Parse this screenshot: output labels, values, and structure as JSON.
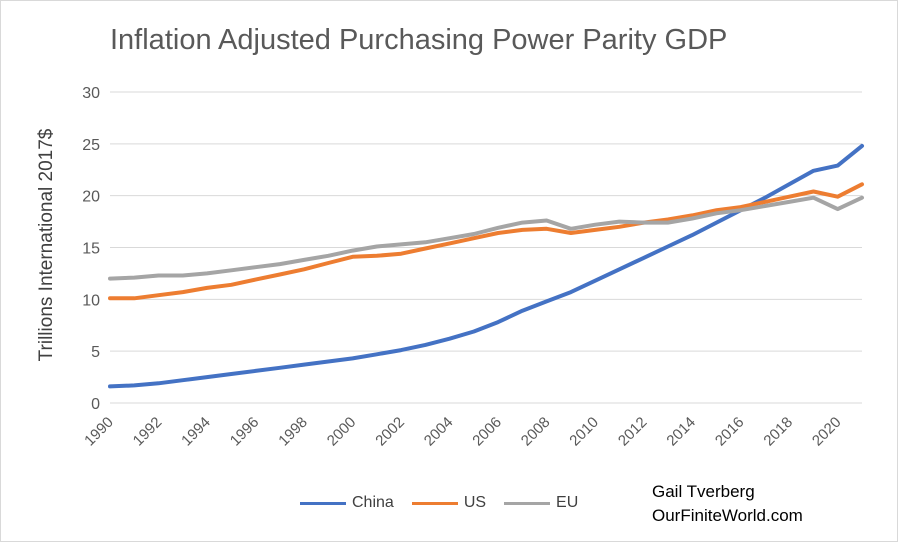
{
  "chart_data": {
    "type": "line",
    "title": "Inflation Adjusted Purchasing Power Parity GDP",
    "ylabel": "Trillions International 2017$",
    "xlabel": "",
    "ylim": [
      0,
      30
    ],
    "yticks": [
      "0",
      "5",
      "10",
      "15",
      "20",
      "25",
      "30"
    ],
    "xticks": [
      "1990",
      "1992",
      "1994",
      "1996",
      "1998",
      "2000",
      "2002",
      "2004",
      "2006",
      "2008",
      "2010",
      "2012",
      "2014",
      "2016",
      "2018",
      "2020"
    ],
    "x": [
      1990,
      1991,
      1992,
      1993,
      1994,
      1995,
      1996,
      1997,
      1998,
      1999,
      2000,
      2001,
      2002,
      2003,
      2004,
      2005,
      2006,
      2007,
      2008,
      2009,
      2010,
      2011,
      2012,
      2013,
      2014,
      2015,
      2016,
      2017,
      2018,
      2019,
      2020,
      2021
    ],
    "grid": true,
    "legend_position": "bottom",
    "series": [
      {
        "name": "China",
        "color": "#4472C4",
        "values": [
          1.6,
          1.7,
          1.9,
          2.2,
          2.5,
          2.8,
          3.1,
          3.4,
          3.7,
          4.0,
          4.3,
          4.7,
          5.1,
          5.6,
          6.2,
          6.9,
          7.8,
          8.9,
          9.8,
          10.7,
          11.8,
          12.9,
          14.0,
          15.1,
          16.2,
          17.4,
          18.6,
          19.8,
          21.1,
          22.4,
          22.9,
          24.8
        ]
      },
      {
        "name": "US",
        "color": "#ED7D31",
        "values": [
          10.1,
          10.1,
          10.4,
          10.7,
          11.1,
          11.4,
          11.9,
          12.4,
          12.9,
          13.5,
          14.1,
          14.2,
          14.4,
          14.9,
          15.4,
          15.9,
          16.4,
          16.7,
          16.8,
          16.4,
          16.7,
          17.0,
          17.4,
          17.7,
          18.1,
          18.6,
          18.9,
          19.4,
          19.9,
          20.4,
          19.9,
          21.1
        ]
      },
      {
        "name": "EU",
        "color": "#A5A5A5",
        "values": [
          12.0,
          12.1,
          12.3,
          12.3,
          12.5,
          12.8,
          13.1,
          13.4,
          13.8,
          14.2,
          14.7,
          15.1,
          15.3,
          15.5,
          15.9,
          16.3,
          16.9,
          17.4,
          17.6,
          16.8,
          17.2,
          17.5,
          17.4,
          17.4,
          17.8,
          18.3,
          18.6,
          19.0,
          19.4,
          19.8,
          18.7,
          19.8
        ]
      }
    ]
  },
  "credit": {
    "line1": "Gail Tverberg",
    "line2": "OurFiniteWorld.com"
  }
}
